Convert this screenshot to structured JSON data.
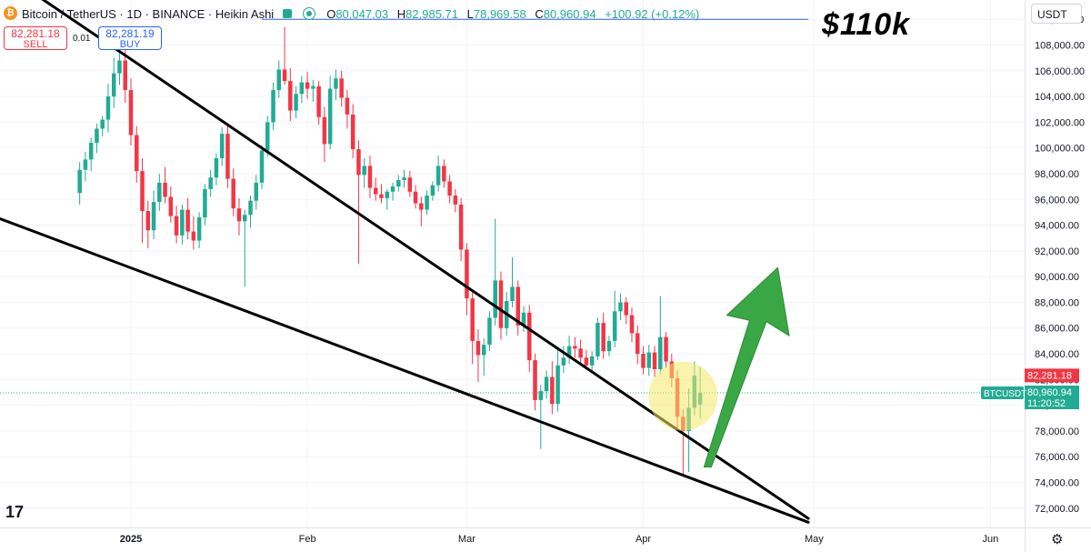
{
  "header": {
    "symbol": "Bitcoin / TetherUS · 1D · BINANCE · Heikin Ashi",
    "open_label": "O",
    "open": "80,047.03",
    "high_label": "H",
    "high": "82,985.71",
    "low_label": "L",
    "low": "78,969.58",
    "close_label": "C",
    "close": "80,960.94",
    "change": "+100.92 (+0.12%)",
    "icons": [
      "bitcoin-coin-icon",
      "flag-icon",
      "live-dot-icon"
    ]
  },
  "trade": {
    "sell_price": "82,281.18",
    "sell_label": "SELL",
    "spread": "0.01",
    "buy_price": "82,281.19",
    "buy_label": "BUY"
  },
  "currency": "USDT",
  "annotation_text": "$110k",
  "tv_logo": "17",
  "colors": {
    "up": "#22ab94",
    "down": "#f23645",
    "trendline": "#000000",
    "arrow": "#3aa745",
    "highlight": "#f5e96a",
    "target_line": "#2962ff"
  },
  "chart_data": {
    "type": "candlestick",
    "style": "Heikin Ashi",
    "symbol": "BTCUSDT",
    "ylim": [
      70500,
      111500
    ],
    "y_ticks": [
      72000,
      74000,
      76000,
      78000,
      80000,
      82000,
      84000,
      86000,
      88000,
      90000,
      92000,
      94000,
      96000,
      98000,
      100000,
      102000,
      104000,
      106000,
      108000,
      110000
    ],
    "y_tick_labels": [
      "72,000.00",
      "74,000.00",
      "76,000.00",
      "78,000.00",
      "80,000.00",
      "82,000.00",
      "84,000.00",
      "86,000.00",
      "88,000.00",
      "90,000.00",
      "92,000.00",
      "94,000.00",
      "96,000.00",
      "98,000.00",
      "100,000.00",
      "102,000.00",
      "104,000.00",
      "106,000.00",
      "108,000.00",
      "110,000.00"
    ],
    "x_range": [
      "2024-12-09",
      "2025-06-07"
    ],
    "x_ticks": [
      {
        "date": "2025-01-01",
        "label": "2025",
        "bold": true
      },
      {
        "date": "2025-02-01",
        "label": "Feb"
      },
      {
        "date": "2025-03-01",
        "label": "Mar"
      },
      {
        "date": "2025-04-01",
        "label": "Apr"
      },
      {
        "date": "2025-05-01",
        "label": "May"
      },
      {
        "date": "2025-06-01",
        "label": "Jun"
      }
    ],
    "grid": true,
    "candles_ohlc": [
      [
        96500,
        98900,
        95600,
        98300
      ],
      [
        98300,
        99700,
        97400,
        99100
      ],
      [
        99100,
        100800,
        98200,
        100400
      ],
      [
        100400,
        101900,
        99600,
        101500
      ],
      [
        101500,
        102500,
        100900,
        102200
      ],
      [
        102200,
        105000,
        101200,
        104000
      ],
      [
        104000,
        107000,
        103100,
        105800
      ],
      [
        105800,
        108600,
        104900,
        106800
      ],
      [
        106800,
        107900,
        103500,
        104500
      ],
      [
        104500,
        105400,
        100200,
        101000
      ],
      [
        101000,
        101700,
        97300,
        98200
      ],
      [
        98200,
        99200,
        92600,
        95100
      ],
      [
        95100,
        95900,
        92200,
        93600
      ],
      [
        93600,
        96700,
        92900,
        95800
      ],
      [
        95800,
        98000,
        95100,
        97300
      ],
      [
        97300,
        98500,
        95700,
        96200
      ],
      [
        96200,
        97000,
        94200,
        94700
      ],
      [
        94700,
        95500,
        92600,
        93200
      ],
      [
        93200,
        95600,
        92500,
        95200
      ],
      [
        95200,
        96100,
        92900,
        93500
      ],
      [
        93500,
        94700,
        92100,
        92800
      ],
      [
        92800,
        95000,
        92200,
        94600
      ],
      [
        94600,
        97200,
        94000,
        96800
      ],
      [
        96800,
        98300,
        96200,
        97700
      ],
      [
        97700,
        99600,
        97100,
        99200
      ],
      [
        99200,
        101600,
        98600,
        101100
      ],
      [
        101100,
        101900,
        96900,
        97600
      ],
      [
        97600,
        98400,
        94700,
        95300
      ],
      [
        95300,
        96100,
        93200,
        94300
      ],
      [
        94300,
        95200,
        89200,
        94800
      ],
      [
        94800,
        96300,
        93800,
        95900
      ],
      [
        95900,
        97900,
        95200,
        97300
      ],
      [
        97300,
        100200,
        96800,
        99800
      ],
      [
        99800,
        102500,
        99300,
        102000
      ],
      [
        102000,
        105100,
        101400,
        104500
      ],
      [
        104500,
        106800,
        103900,
        106100
      ],
      [
        106100,
        109400,
        104900,
        105200
      ],
      [
        105200,
        106200,
        102100,
        102900
      ],
      [
        102900,
        104800,
        102300,
        104200
      ],
      [
        104200,
        105600,
        103500,
        105100
      ],
      [
        105100,
        105900,
        103800,
        104600
      ],
      [
        104600,
        105300,
        103600,
        104800
      ],
      [
        104800,
        105200,
        101800,
        102400
      ],
      [
        102400,
        103200,
        98900,
        100300
      ],
      [
        100300,
        105600,
        99900,
        104600
      ],
      [
        104600,
        106100,
        103700,
        105400
      ],
      [
        105400,
        106000,
        103200,
        103900
      ],
      [
        103900,
        104500,
        101500,
        102600
      ],
      [
        102600,
        103400,
        99200,
        99900
      ],
      [
        99900,
        100600,
        91000,
        97900
      ],
      [
        97900,
        99200,
        96900,
        98600
      ],
      [
        98600,
        99400,
        96100,
        96900
      ],
      [
        96900,
        97700,
        95900,
        96400
      ],
      [
        96400,
        97200,
        95700,
        96100
      ],
      [
        96100,
        96800,
        95200,
        96600
      ],
      [
        96600,
        97300,
        95900,
        97000
      ],
      [
        97000,
        97900,
        96600,
        97500
      ],
      [
        97500,
        98300,
        96900,
        97700
      ],
      [
        97700,
        98200,
        96200,
        96600
      ],
      [
        96600,
        97100,
        95300,
        95700
      ],
      [
        95700,
        96200,
        93900,
        95200
      ],
      [
        95200,
        96700,
        94800,
        96300
      ],
      [
        96300,
        97400,
        95900,
        97100
      ],
      [
        97100,
        99400,
        96600,
        98600
      ],
      [
        98600,
        99100,
        96900,
        97400
      ],
      [
        97400,
        97900,
        95700,
        96300
      ],
      [
        96300,
        96800,
        95000,
        95600
      ],
      [
        95600,
        96100,
        91200,
        92100
      ],
      [
        92100,
        92600,
        87000,
        88300
      ],
      [
        88300,
        88800,
        83200,
        85000
      ],
      [
        85000,
        85900,
        81800,
        83900
      ],
      [
        83900,
        85200,
        82300,
        84700
      ],
      [
        84700,
        87300,
        84200,
        86800
      ],
      [
        86800,
        94500,
        86200,
        89700
      ],
      [
        89700,
        90400,
        85100,
        86000
      ],
      [
        86000,
        88800,
        85400,
        88100
      ],
      [
        88100,
        91500,
        87600,
        89200
      ],
      [
        89200,
        89700,
        85400,
        86200
      ],
      [
        86200,
        87700,
        85700,
        87200
      ],
      [
        87200,
        87800,
        82600,
        83500
      ],
      [
        83500,
        84000,
        79600,
        80400
      ],
      [
        80400,
        81600,
        76600,
        81100
      ],
      [
        81100,
        82700,
        80500,
        82200
      ],
      [
        82200,
        83400,
        79300,
        80100
      ],
      [
        80100,
        84300,
        79500,
        83100
      ],
      [
        83100,
        84600,
        82500,
        83700
      ],
      [
        83700,
        85400,
        83200,
        84600
      ],
      [
        84600,
        85300,
        83700,
        84400
      ],
      [
        84400,
        85100,
        83100,
        83700
      ],
      [
        83700,
        84300,
        82800,
        83100
      ],
      [
        83100,
        84200,
        82600,
        83800
      ],
      [
        83800,
        86800,
        83500,
        86400
      ],
      [
        86400,
        87200,
        83600,
        84200
      ],
      [
        84200,
        85400,
        83800,
        85000
      ],
      [
        85000,
        88900,
        84500,
        87300
      ],
      [
        87300,
        88700,
        86600,
        88000
      ],
      [
        88000,
        88400,
        86300,
        87000
      ],
      [
        87000,
        87600,
        84900,
        85600
      ],
      [
        85600,
        86200,
        83200,
        84000
      ],
      [
        84000,
        84600,
        82400,
        82900
      ],
      [
        82900,
        84700,
        82300,
        84100
      ],
      [
        84100,
        84600,
        82200,
        82800
      ],
      [
        82800,
        88500,
        82400,
        85300
      ],
      [
        85300,
        85700,
        82900,
        83400
      ],
      [
        83400,
        84000,
        81400,
        82100
      ],
      [
        82100,
        82700,
        78200,
        79100
      ],
      [
        79100,
        79700,
        74500,
        78000
      ],
      [
        78000,
        81300,
        74800,
        79800
      ],
      [
        79800,
        83400,
        79200,
        82300
      ],
      [
        80047.03,
        82985.71,
        78969.58,
        80960.94
      ]
    ],
    "trendlines": [
      {
        "name": "upper",
        "from": [
          "2024-12-05",
          115000
        ],
        "to": [
          "2025-04-30",
          71200
        ]
      },
      {
        "name": "lower",
        "from": [
          "2024-12-09",
          94500
        ],
        "to": [
          "2025-04-30",
          70900
        ]
      }
    ],
    "target_level": 110000,
    "target_start": "2025-01-24",
    "target_end": "2025-04-30",
    "price_labels": [
      {
        "label": "82,281.18",
        "value": 82281.18,
        "color": "#f23645"
      },
      {
        "label": "80,960.94",
        "sub": "11:20:52",
        "value": 80960.94,
        "color": "#22ab94",
        "tag": "BTCUSDT"
      }
    ]
  }
}
